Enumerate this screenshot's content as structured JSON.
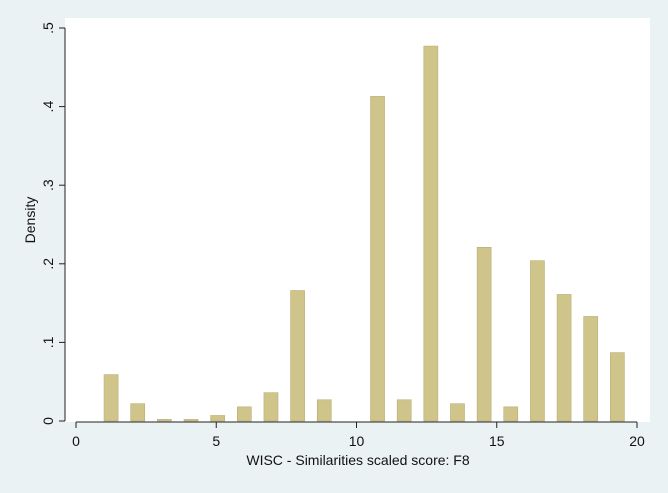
{
  "chart_data": {
    "type": "bar",
    "xlabel": "WISC - Similarities scaled score: F8",
    "ylabel": "Density",
    "xlim": [
      0,
      20
    ],
    "ylim": [
      0,
      0.5
    ],
    "x_ticks": [
      {
        "value": 0,
        "label": "0"
      },
      {
        "value": 5,
        "label": "5"
      },
      {
        "value": 10,
        "label": "10"
      },
      {
        "value": 15,
        "label": "15"
      },
      {
        "value": 20,
        "label": "20"
      }
    ],
    "y_ticks": [
      {
        "value": 0,
        "label": "0"
      },
      {
        "value": 0.1,
        "label": ".1"
      },
      {
        "value": 0.2,
        "label": ".2"
      },
      {
        "value": 0.3,
        "label": ".3"
      },
      {
        "value": 0.4,
        "label": ".4"
      },
      {
        "value": 0.5,
        "label": ".5"
      }
    ],
    "bar_width": 0.5,
    "bars": [
      {
        "x": 1.25,
        "y": 0.059
      },
      {
        "x": 2.2,
        "y": 0.022
      },
      {
        "x": 3.15,
        "y": 0.002
      },
      {
        "x": 4.1,
        "y": 0.002
      },
      {
        "x": 5.05,
        "y": 0.007
      },
      {
        "x": 6.0,
        "y": 0.018
      },
      {
        "x": 6.95,
        "y": 0.036
      },
      {
        "x": 7.9,
        "y": 0.166
      },
      {
        "x": 8.85,
        "y": 0.027
      },
      {
        "x": 10.75,
        "y": 0.413
      },
      {
        "x": 11.7,
        "y": 0.027
      },
      {
        "x": 12.65,
        "y": 0.477
      },
      {
        "x": 13.6,
        "y": 0.022
      },
      {
        "x": 14.55,
        "y": 0.221
      },
      {
        "x": 15.5,
        "y": 0.018
      },
      {
        "x": 16.45,
        "y": 0.204
      },
      {
        "x": 17.4,
        "y": 0.161
      },
      {
        "x": 18.35,
        "y": 0.133
      },
      {
        "x": 19.3,
        "y": 0.087
      }
    ],
    "bar_color": "#cfc58b",
    "bar_stroke": "#b8ad72",
    "plot_background": "#ffffff",
    "figure_background": "#eaf2f3",
    "grid": false,
    "legend": "none"
  }
}
